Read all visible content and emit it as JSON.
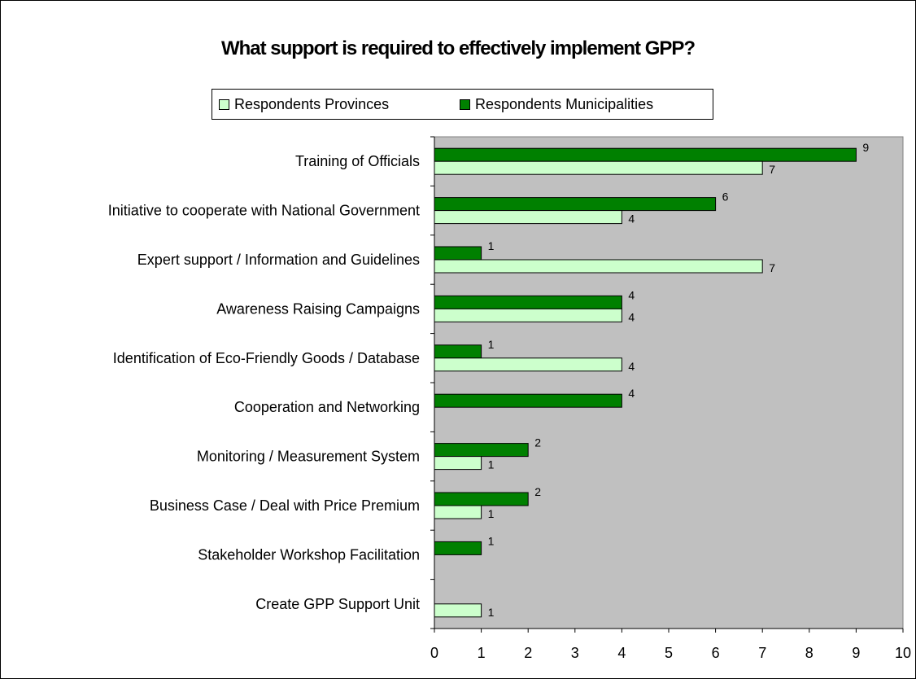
{
  "chart_data": {
    "type": "bar",
    "orientation": "horizontal",
    "title": "What support is required to effectively implement GPP?",
    "categories": [
      "Training of Officials",
      "Initiative to cooperate with National Government",
      "Expert support / Information and Guidelines",
      "Awareness Raising Campaigns",
      "Identification of Eco-Friendly Goods / Database",
      "Cooperation and Networking",
      "Monitoring / Measurement System",
      "Business Case / Deal with Price Premium",
      "Stakeholder Workshop Facilitation",
      "Create GPP Support Unit"
    ],
    "series": [
      {
        "name": "Respondents Provinces",
        "color": "#ccffcc",
        "values": [
          7,
          4,
          7,
          4,
          4,
          null,
          1,
          1,
          null,
          1
        ]
      },
      {
        "name": "Respondents Municipalities",
        "color": "#008000",
        "values": [
          9,
          6,
          1,
          4,
          1,
          4,
          2,
          2,
          1,
          null
        ]
      }
    ],
    "xlim": [
      0,
      10
    ],
    "xticks": [
      "0",
      "1",
      "2",
      "3",
      "4",
      "5",
      "6",
      "7",
      "8",
      "9",
      "10"
    ],
    "xlabel": "",
    "ylabel": "",
    "grid": false,
    "plot_background": "#c0c0c0",
    "legend_position": "top"
  }
}
